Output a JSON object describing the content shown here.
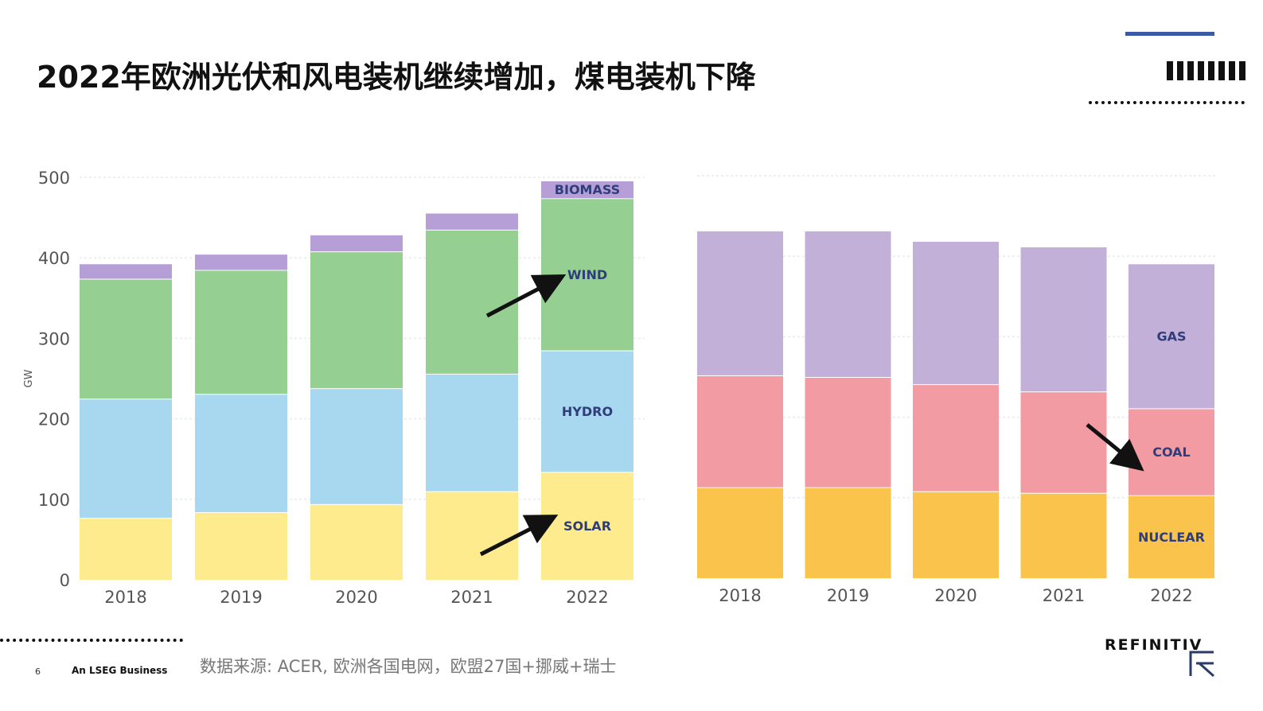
{
  "title": "2022年欧洲光伏和风电装机继续增加，煤电装机下降",
  "footer": {
    "page_number": "6",
    "tagline": "An LSEG Business",
    "source": "数据来源: ACER, 欧洲各国电网，欧盟27国+挪威+瑞士",
    "brand": "REFINITIV"
  },
  "colors": {
    "solar": "#fdeb8e",
    "hydro": "#a8d8ef",
    "wind": "#95cf91",
    "biomass": "#b69fd6",
    "nuclear": "#f9c34c",
    "coal": "#f29ba3",
    "gas": "#c2b0d9",
    "label": "#2f3e7a",
    "accent": "#3a5aa8"
  },
  "chart_data": [
    {
      "type": "bar",
      "stacked": true,
      "categories": [
        "2018",
        "2019",
        "2020",
        "2021",
        "2022"
      ],
      "ylabel": "GW",
      "ylim": [
        0,
        500
      ],
      "yticks": [
        0,
        100,
        200,
        300,
        400,
        500
      ],
      "grid": true,
      "series": [
        {
          "name": "SOLAR",
          "color_key": "solar",
          "values": [
            77,
            84,
            94,
            110,
            134
          ]
        },
        {
          "name": "HYDRO",
          "color_key": "hydro",
          "values": [
            148,
            147,
            144,
            146,
            151
          ]
        },
        {
          "name": "WIND",
          "color_key": "wind",
          "values": [
            149,
            154,
            170,
            179,
            189
          ]
        },
        {
          "name": "BIOMASS",
          "color_key": "biomass",
          "values": [
            19,
            20,
            21,
            21,
            22
          ]
        }
      ],
      "label_category": "2022",
      "annotation_arrows": [
        "SOLAR",
        "WIND"
      ]
    },
    {
      "type": "bar",
      "stacked": true,
      "categories": [
        "2018",
        "2019",
        "2020",
        "2021",
        "2022"
      ],
      "ylim": [
        0,
        500
      ],
      "grid": true,
      "series": [
        {
          "name": "NUCLEAR",
          "color_key": "nuclear",
          "values": [
            113,
            113,
            108,
            106,
            103
          ]
        },
        {
          "name": "COAL",
          "color_key": "coal",
          "values": [
            139,
            137,
            133,
            126,
            108
          ]
        },
        {
          "name": "GAS",
          "color_key": "gas",
          "values": [
            180,
            182,
            178,
            180,
            180
          ]
        }
      ],
      "label_category": "2022",
      "annotation_arrows": [
        "COAL"
      ]
    }
  ]
}
